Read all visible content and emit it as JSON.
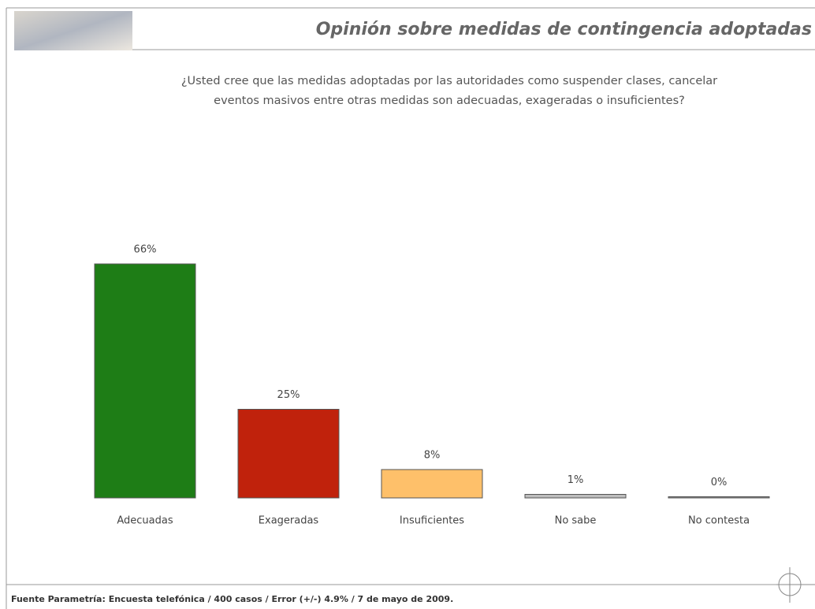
{
  "chart_data": {
    "type": "bar",
    "title": "Opinión sobre medidas de contingencia adoptadas",
    "subtitle": [
      "¿Usted cree que las medidas adoptadas por las autoridades como suspender clases, cancelar",
      "eventos masivos entre otras medidas son adecuadas, exageradas o insuficientes?"
    ],
    "categories": [
      "Adecuadas",
      "Exageradas",
      "Insuficientes",
      "No sabe",
      "No contesta"
    ],
    "values": [
      66,
      25,
      8,
      1,
      0
    ],
    "value_labels": [
      "66%",
      "25%",
      "8%",
      "1%",
      "0%"
    ],
    "colors": [
      "#1e7d16",
      "#c0220c",
      "#fec06a",
      "#bdbdbd",
      "#8a8a8a"
    ],
    "source": "Fuente Parametría: Encuesta telefónica / 400 casos / Error (+/-) 4.9% / 7 de mayo de 2009."
  }
}
